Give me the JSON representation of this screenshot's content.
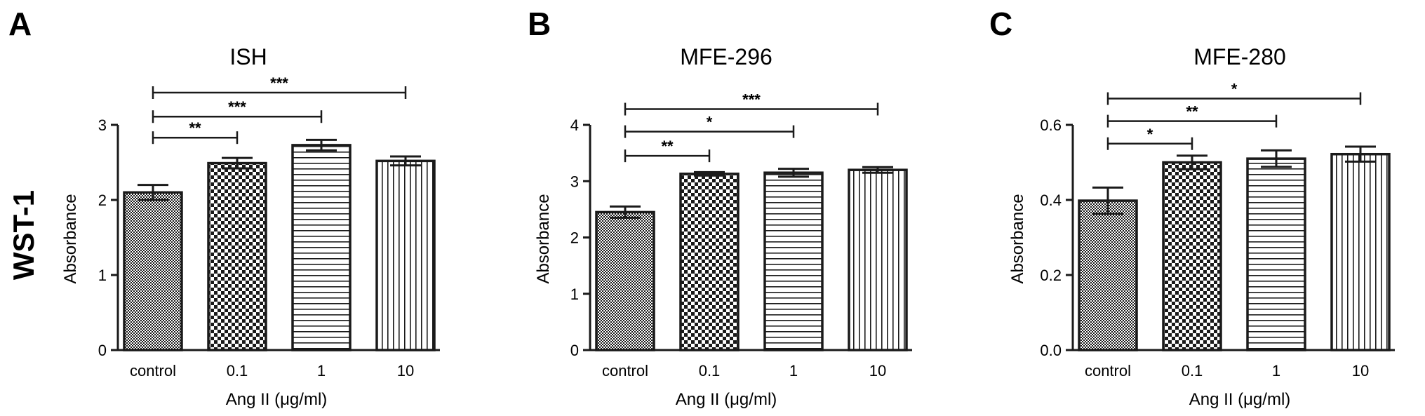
{
  "row_label": "WST-1",
  "colors": {
    "ink": "#1a1a1a",
    "background": "#ffffff"
  },
  "chart_data": [
    {
      "type": "bar",
      "panel": "A",
      "title": "ISH",
      "xlabel": "Ang II (μg/ml)",
      "ylabel": "Absorbance",
      "ylim": [
        0,
        3
      ],
      "yticks": [
        0,
        1,
        2,
        3
      ],
      "ytick_labels": [
        "0",
        "1",
        "2",
        "3"
      ],
      "grid": false,
      "categories": [
        "control",
        "0.1",
        "1",
        "10"
      ],
      "fill_patterns": [
        "dense-check",
        "checker",
        "horizontal-lines",
        "vertical-lines"
      ],
      "values": [
        2.1,
        2.49,
        2.73,
        2.52
      ],
      "errors": [
        0.1,
        0.07,
        0.07,
        0.06
      ],
      "comparisons": [
        {
          "from": 0,
          "to": 1,
          "label": "**",
          "y": 2.83
        },
        {
          "from": 0,
          "to": 2,
          "label": "***",
          "y": 3.11
        },
        {
          "from": 0,
          "to": 3,
          "label": "***",
          "y": 3.43
        }
      ]
    },
    {
      "type": "bar",
      "panel": "B",
      "title": "MFE-296",
      "xlabel": "Ang II (μg/ml)",
      "ylabel": "Absorbance",
      "ylim": [
        0,
        4
      ],
      "yticks": [
        0,
        1,
        2,
        3,
        4
      ],
      "ytick_labels": [
        "0",
        "1",
        "2",
        "3",
        "4"
      ],
      "grid": false,
      "categories": [
        "control",
        "0.1",
        "1",
        "10"
      ],
      "fill_patterns": [
        "dense-check",
        "checker",
        "horizontal-lines",
        "vertical-lines"
      ],
      "values": [
        2.45,
        3.13,
        3.15,
        3.2
      ],
      "errors": [
        0.1,
        0.03,
        0.07,
        0.05
      ],
      "comparisons": [
        {
          "from": 0,
          "to": 1,
          "label": "**",
          "y": 3.45
        },
        {
          "from": 0,
          "to": 2,
          "label": "*",
          "y": 3.88
        },
        {
          "from": 0,
          "to": 3,
          "label": "***",
          "y": 4.28
        }
      ]
    },
    {
      "type": "bar",
      "panel": "C",
      "title": "MFE-280",
      "xlabel": "Ang II (μg/ml)",
      "ylabel": "Absorbance",
      "ylim": [
        0,
        0.6
      ],
      "yticks": [
        0,
        0.2,
        0.4,
        0.6
      ],
      "ytick_labels": [
        "0.0",
        "0.2",
        "0.4",
        "0.6"
      ],
      "grid": false,
      "categories": [
        "control",
        "0.1",
        "1",
        "10"
      ],
      "fill_patterns": [
        "dense-check",
        "checker",
        "horizontal-lines",
        "vertical-lines"
      ],
      "values": [
        0.398,
        0.5,
        0.51,
        0.522
      ],
      "errors": [
        0.035,
        0.018,
        0.022,
        0.02
      ],
      "comparisons": [
        {
          "from": 0,
          "to": 1,
          "label": "*",
          "y": 0.55
        },
        {
          "from": 0,
          "to": 2,
          "label": "**",
          "y": 0.61
        },
        {
          "from": 0,
          "to": 3,
          "label": "*",
          "y": 0.67
        }
      ]
    }
  ]
}
